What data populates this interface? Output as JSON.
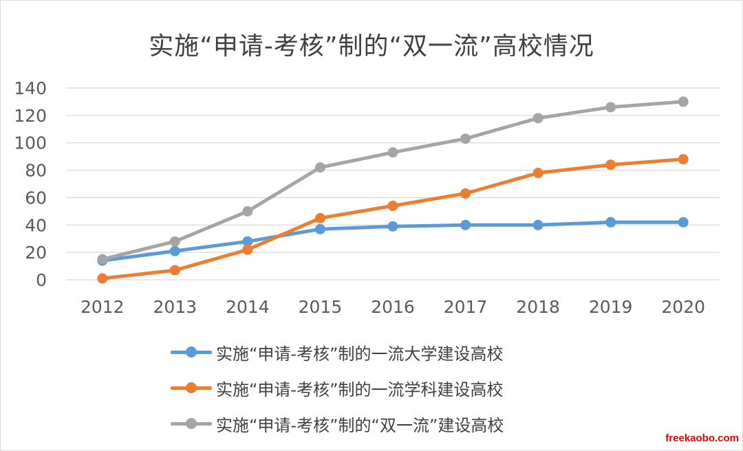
{
  "chart_data": {
    "type": "line",
    "title": "实施“申请-考核”制的“双一流”高校情况",
    "x": [
      "2012",
      "2013",
      "2014",
      "2015",
      "2016",
      "2017",
      "2018",
      "2019",
      "2020"
    ],
    "ylim": [
      0,
      140
    ],
    "yticks": [
      "0",
      "20",
      "40",
      "60",
      "80",
      "100",
      "120",
      "140"
    ],
    "grid": true,
    "legend_position": "bottom",
    "series": [
      {
        "name": "实施“申请-考核”制的一流大学建设高校",
        "color": "#5b9bd5",
        "values": [
          14,
          21,
          28,
          37,
          39,
          40,
          40,
          42,
          42
        ]
      },
      {
        "name": "实施“申请-考核”制的一流学科建设高校",
        "color": "#ed7d31",
        "values": [
          1,
          7,
          22,
          45,
          54,
          63,
          78,
          84,
          88
        ]
      },
      {
        "name": "实施“申请-考核”制的“双一流”建设高校",
        "color": "#a5a5a5",
        "values": [
          15,
          28,
          50,
          82,
          93,
          103,
          118,
          126,
          130
        ]
      }
    ]
  },
  "watermark": "freekaobo.com",
  "colors": {
    "gridline": "#d9d9d9",
    "tick_text": "#595959",
    "title_text": "#404040"
  }
}
